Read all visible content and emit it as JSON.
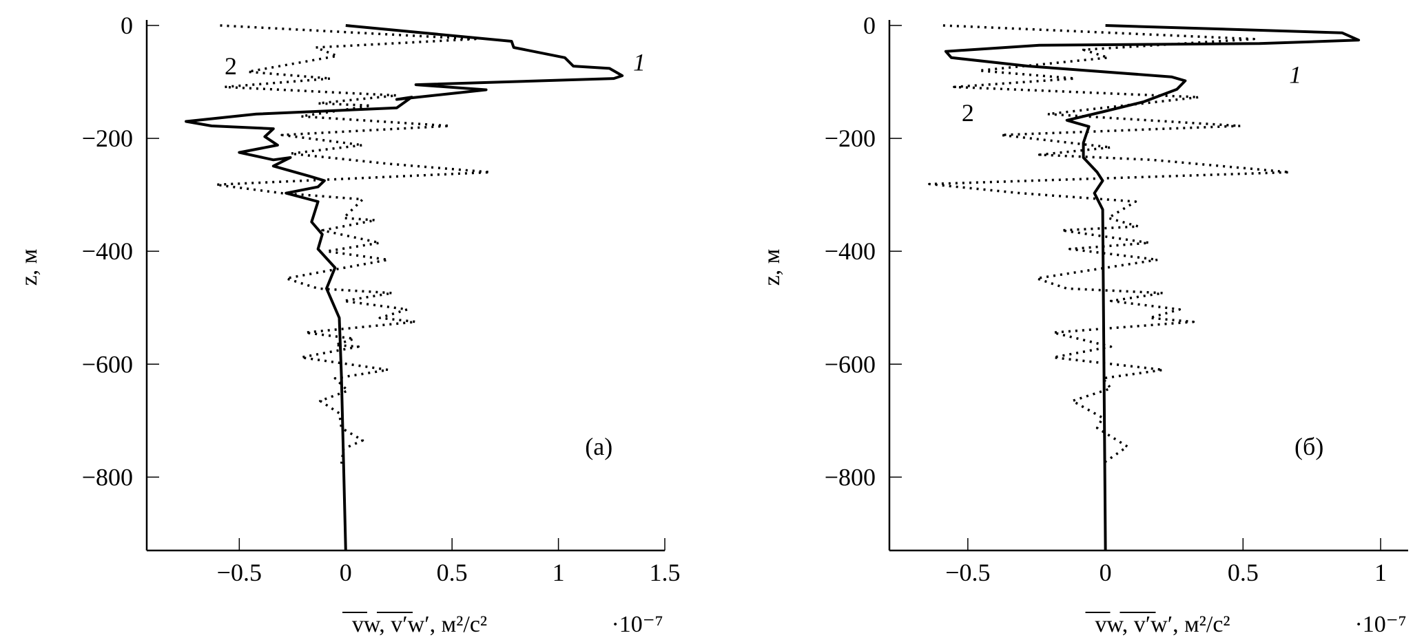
{
  "chart_data": [
    {
      "type": "line",
      "panel_label": "(a)",
      "xlabel": "vw, v′w′, м²/с²",
      "x_multiplier": "·10⁻⁷",
      "ylabel": "z, м",
      "xlim": [
        -0.935,
        1.5
      ],
      "ylim": [
        -930,
        0
      ],
      "xticks": [
        -0.5,
        0,
        0.5,
        1,
        1.5
      ],
      "xtick_labels": [
        "−0.5",
        "0",
        "0.5",
        "1",
        "1.5"
      ],
      "yticks": [
        0,
        -200,
        -400,
        -600,
        -800
      ],
      "ytick_labels": [
        "0",
        "−200",
        "−400",
        "−600",
        "−800"
      ],
      "grid": false,
      "series": [
        {
          "name": "1",
          "style": "solid",
          "label_pos": [
            1.38,
            -65
          ],
          "points": [
            [
              0,
              0
            ],
            [
              0.78,
              -28
            ],
            [
              0.79,
              -39
            ],
            [
              1.03,
              -57
            ],
            [
              1.07,
              -72
            ],
            [
              1.24,
              -76
            ],
            [
              1.3,
              -89
            ],
            [
              1.26,
              -94
            ],
            [
              0.33,
              -105
            ],
            [
              0.66,
              -114
            ],
            [
              0.51,
              -120
            ],
            [
              0.24,
              -131
            ],
            [
              0.31,
              -127
            ],
            [
              0.24,
              -146
            ],
            [
              -0.42,
              -157
            ],
            [
              -0.75,
              -170
            ],
            [
              -0.63,
              -178
            ],
            [
              -0.34,
              -183
            ],
            [
              -0.38,
              -197
            ],
            [
              -0.32,
              -212
            ],
            [
              -0.5,
              -225
            ],
            [
              -0.34,
              -238
            ],
            [
              -0.26,
              -234
            ],
            [
              -0.34,
              -249
            ],
            [
              -0.17,
              -267
            ],
            [
              -0.1,
              -275
            ],
            [
              -0.13,
              -286
            ],
            [
              -0.28,
              -297
            ],
            [
              -0.13,
              -312
            ],
            [
              -0.16,
              -348
            ],
            [
              -0.11,
              -370
            ],
            [
              -0.13,
              -396
            ],
            [
              -0.05,
              -429
            ],
            [
              -0.09,
              -466
            ],
            [
              -0.03,
              -518
            ],
            [
              -0.02,
              -621
            ],
            [
              0,
              -930
            ]
          ]
        },
        {
          "name": "2",
          "style": "dotted",
          "label_pos": [
            -0.54,
            -72
          ],
          "points": [
            [
              -0.59,
              0
            ],
            [
              0.61,
              -24
            ],
            [
              -0.14,
              -39
            ],
            [
              -0.04,
              -54
            ],
            [
              -0.46,
              -82
            ],
            [
              -0.07,
              -94
            ],
            [
              -0.57,
              -109
            ],
            [
              0.24,
              -124
            ],
            [
              -0.13,
              -138
            ],
            [
              0.12,
              -142
            ],
            [
              -0.21,
              -161
            ],
            [
              0.49,
              -178
            ],
            [
              -0.3,
              -194
            ],
            [
              0.08,
              -212
            ],
            [
              -0.26,
              -227
            ],
            [
              0.2,
              -245
            ],
            [
              0.68,
              -260
            ],
            [
              -0.61,
              -282
            ],
            [
              -0.3,
              -297
            ],
            [
              0.08,
              -308
            ],
            [
              -0.01,
              -341
            ],
            [
              0.14,
              -345
            ],
            [
              -0.11,
              -363
            ],
            [
              0.16,
              -385
            ],
            [
              -0.09,
              -400
            ],
            [
              0.2,
              -415
            ],
            [
              -0.28,
              -448
            ],
            [
              -0.13,
              -466
            ],
            [
              0.22,
              -474
            ],
            [
              -0.01,
              -488
            ],
            [
              0.29,
              -503
            ],
            [
              0.16,
              -518
            ],
            [
              0.33,
              -525
            ],
            [
              -0.19,
              -544
            ],
            [
              0.04,
              -555
            ],
            [
              -0.05,
              -566
            ],
            [
              0.06,
              -569
            ],
            [
              -0.21,
              -588
            ],
            [
              0.2,
              -610
            ],
            [
              -0.05,
              -625
            ],
            [
              0.01,
              -647
            ],
            [
              -0.12,
              -665
            ],
            [
              -0.03,
              -687
            ],
            [
              -0.02,
              -713
            ],
            [
              0.08,
              -735
            ],
            [
              -0.01,
              -750
            ],
            [
              -0.02,
              -776
            ]
          ]
        }
      ],
      "panel_label_pos": [
        1.19,
        -746
      ]
    },
    {
      "type": "line",
      "panel_label": "(б)",
      "xlabel": "vw, v′w′, м²/с²",
      "x_multiplier": "·10⁻⁷",
      "ylabel": "z, м",
      "xlim": [
        -0.785,
        1.1
      ],
      "ylim": [
        -930,
        0
      ],
      "xticks": [
        -0.5,
        0,
        0.5,
        1
      ],
      "xtick_labels": [
        "−0.5",
        "0",
        "0.5",
        "1"
      ],
      "yticks": [
        0,
        -200,
        -400,
        -600,
        -800
      ],
      "ytick_labels": [
        "0",
        "−200",
        "−400",
        "−600",
        "−800"
      ],
      "grid": false,
      "series": [
        {
          "name": "1",
          "style": "solid",
          "label_pos": [
            0.69,
            -87
          ],
          "points": [
            [
              0,
              0
            ],
            [
              0.86,
              -13
            ],
            [
              0.92,
              -26
            ],
            [
              0.56,
              -32
            ],
            [
              -0.24,
              -35
            ],
            [
              -0.58,
              -46
            ],
            [
              -0.56,
              -57
            ],
            [
              -0.28,
              -72
            ],
            [
              0.24,
              -91
            ],
            [
              0.29,
              -98
            ],
            [
              0.26,
              -113
            ],
            [
              0.14,
              -135
            ],
            [
              -0.01,
              -153
            ],
            [
              -0.14,
              -168
            ],
            [
              -0.06,
              -179
            ],
            [
              -0.08,
              -208
            ],
            [
              -0.08,
              -234
            ],
            [
              -0.03,
              -260
            ],
            [
              -0.01,
              -275
            ],
            [
              -0.04,
              -297
            ],
            [
              -0.01,
              -326
            ],
            [
              0,
              -930
            ]
          ]
        },
        {
          "name": "2",
          "style": "dotted",
          "label_pos": [
            -0.5,
            -155
          ],
          "points": [
            [
              -0.59,
              0
            ],
            [
              0.54,
              -24
            ],
            [
              -0.08,
              -43
            ],
            [
              0.01,
              -57
            ],
            [
              -0.46,
              -80
            ],
            [
              -0.11,
              -94
            ],
            [
              -0.55,
              -109
            ],
            [
              0.34,
              -127
            ],
            [
              -0.21,
              -157
            ],
            [
              0.49,
              -178
            ],
            [
              -0.38,
              -194
            ],
            [
              0.02,
              -216
            ],
            [
              -0.24,
              -229
            ],
            [
              0.17,
              -238
            ],
            [
              0.67,
              -260
            ],
            [
              -0.64,
              -281
            ],
            [
              -0.31,
              -297
            ],
            [
              0.11,
              -312
            ],
            [
              0.01,
              -341
            ],
            [
              0.12,
              -356
            ],
            [
              -0.16,
              -363
            ],
            [
              0.16,
              -385
            ],
            [
              -0.13,
              -396
            ],
            [
              0.19,
              -415
            ],
            [
              -0.25,
              -448
            ],
            [
              -0.14,
              -466
            ],
            [
              0.21,
              -474
            ],
            [
              0.02,
              -488
            ],
            [
              0.27,
              -503
            ],
            [
              0.16,
              -518
            ],
            [
              0.32,
              -525
            ],
            [
              -0.19,
              -544
            ],
            [
              0.02,
              -569
            ],
            [
              -0.19,
              -588
            ],
            [
              0.21,
              -610
            ],
            [
              -0.01,
              -625
            ],
            [
              0.02,
              -643
            ],
            [
              -0.12,
              -665
            ],
            [
              -0.01,
              -695
            ],
            [
              -0.03,
              -713
            ],
            [
              0.08,
              -746
            ],
            [
              -0.01,
              -776
            ]
          ]
        }
      ],
      "panel_label_pos": [
        0.74,
        -746
      ]
    }
  ]
}
